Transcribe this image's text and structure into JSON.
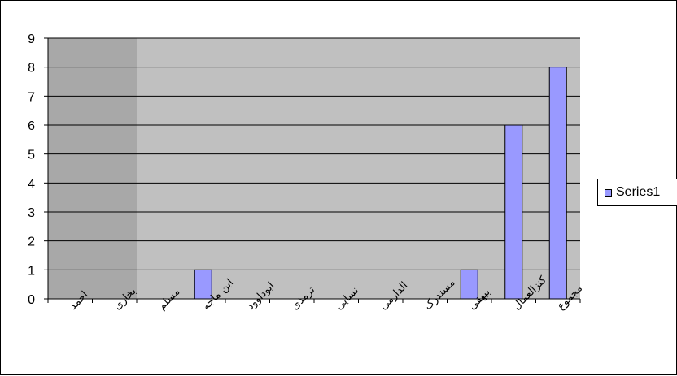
{
  "chart_data": {
    "type": "bar",
    "categories": [
      "احمد",
      "بخاری",
      "مسلم",
      "ابن ماجه",
      "ابوداوود",
      "ترمذی",
      "نسایی",
      "الدارمی",
      "مستدرک",
      "بیهقی",
      "کنزالعمال",
      "مجموع"
    ],
    "series": [
      {
        "name": "Series1",
        "values": [
          0,
          0,
          0,
          1,
          0,
          0,
          0,
          0,
          0,
          1,
          6,
          8
        ]
      }
    ],
    "ylim": [
      0,
      9
    ],
    "yticks": [
      "0",
      "1",
      "2",
      "3",
      "4",
      "5",
      "6",
      "7",
      "8",
      "9"
    ],
    "grid": true,
    "legend_position": "right",
    "colors": {
      "bar_fill": "#9999ff",
      "plot_bg": "#c0c0c0",
      "band_bg": "#a8a8a8",
      "gridline": "#000000"
    }
  }
}
